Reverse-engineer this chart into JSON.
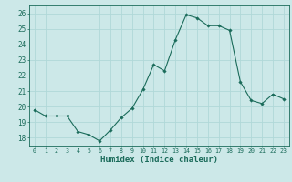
{
  "x": [
    0,
    1,
    2,
    3,
    4,
    5,
    6,
    7,
    8,
    9,
    10,
    11,
    12,
    13,
    14,
    15,
    16,
    17,
    18,
    19,
    20,
    21,
    22,
    23
  ],
  "y": [
    19.8,
    19.4,
    19.4,
    19.4,
    18.4,
    18.2,
    17.8,
    18.5,
    19.3,
    19.9,
    21.1,
    22.7,
    22.3,
    24.3,
    25.9,
    25.7,
    25.2,
    25.2,
    24.9,
    21.6,
    20.4,
    20.2,
    20.8,
    20.5
  ],
  "xlabel": "Humidex (Indice chaleur)",
  "ylim": [
    17.5,
    26.5
  ],
  "xlim": [
    -0.5,
    23.5
  ],
  "yticks": [
    18,
    19,
    20,
    21,
    22,
    23,
    24,
    25,
    26
  ],
  "xticks": [
    0,
    1,
    2,
    3,
    4,
    5,
    6,
    7,
    8,
    9,
    10,
    11,
    12,
    13,
    14,
    15,
    16,
    17,
    18,
    19,
    20,
    21,
    22,
    23
  ],
  "line_color": "#1a6b5a",
  "marker_color": "#1a6b5a",
  "bg_color": "#cce8e8",
  "grid_color": "#b0d8d8",
  "tick_label_color": "#1a6b5a",
  "xlabel_color": "#1a6b5a",
  "axis_color": "#1a6b5a",
  "figsize": [
    3.2,
    2.0
  ],
  "dpi": 100
}
